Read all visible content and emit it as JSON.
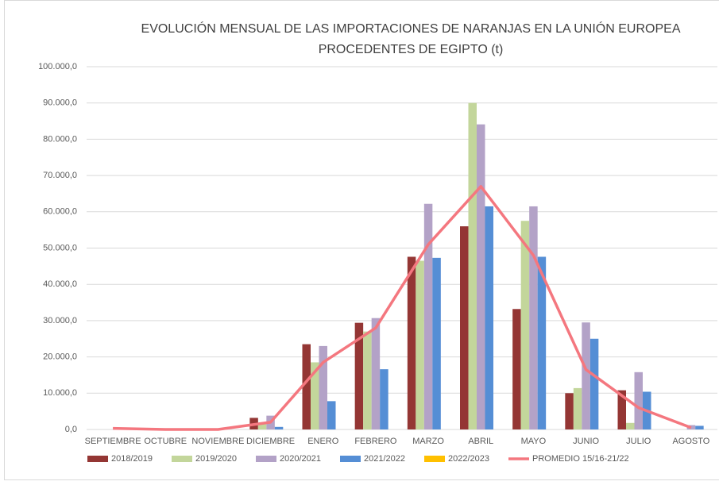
{
  "chart_data": {
    "type": "bar",
    "title": [
      "EVOLUCIÓN MENSUAL DE LAS IMPORTACIONES DE NARANJAS EN LA UNIÓN EUROPEA",
      "PROCEDENTES DE EGIPTO (t)"
    ],
    "categories": [
      "SEPTIEMBRE",
      "OCTUBRE",
      "NOVIEMBRE",
      "DICIEMBRE",
      "ENERO",
      "FEBRERO",
      "MARZO",
      "ABRIL",
      "MAYO",
      "JUNIO",
      "JULIO",
      "AGOSTO"
    ],
    "series": [
      {
        "name": "2018/2019",
        "color": "#943634",
        "values": [
          0,
          0,
          0,
          3200,
          23500,
          29400,
          47600,
          56000,
          33200,
          10000,
          10800,
          0
        ]
      },
      {
        "name": "2019/2020",
        "color": "#c3d69b",
        "values": [
          0,
          0,
          0,
          1500,
          18500,
          27000,
          46500,
          90000,
          57500,
          11400,
          1800,
          0
        ]
      },
      {
        "name": "2020/2021",
        "color": "#b3a2c7",
        "values": [
          0,
          0,
          0,
          3800,
          23000,
          30700,
          62200,
          84100,
          61500,
          29500,
          15800,
          1200
        ]
      },
      {
        "name": "2021/2022",
        "color": "#558ed5",
        "values": [
          0,
          0,
          0,
          700,
          7800,
          16600,
          47300,
          61500,
          47600,
          25000,
          10400,
          1000
        ]
      },
      {
        "name": "2022/2023",
        "color": "#ffc000",
        "values": [
          0,
          0,
          0,
          0,
          null,
          null,
          null,
          null,
          null,
          null,
          null,
          null
        ]
      },
      {
        "name": "PROMEDIO 15/16-21/22",
        "color": "#f4777f",
        "type": "line",
        "values": [
          300,
          0,
          0,
          2000,
          18500,
          28000,
          51000,
          67000,
          48000,
          16500,
          6000,
          500
        ]
      }
    ],
    "ylim": [
      0,
      100000
    ],
    "yticks": [
      {
        "value": 0,
        "label": "0,0"
      },
      {
        "value": 10000,
        "label": "10.000,0"
      },
      {
        "value": 20000,
        "label": "20.000,0"
      },
      {
        "value": 30000,
        "label": "30.000,0"
      },
      {
        "value": 40000,
        "label": "40.000,0"
      },
      {
        "value": 50000,
        "label": "50.000,0"
      },
      {
        "value": 60000,
        "label": "60.000,0"
      },
      {
        "value": 70000,
        "label": "70.000,0"
      },
      {
        "value": 80000,
        "label": "80.000,0"
      },
      {
        "value": 90000,
        "label": "90.000,0"
      },
      {
        "value": 100000,
        "label": "100.000,0"
      }
    ],
    "grid": true,
    "legend": "bottom"
  }
}
